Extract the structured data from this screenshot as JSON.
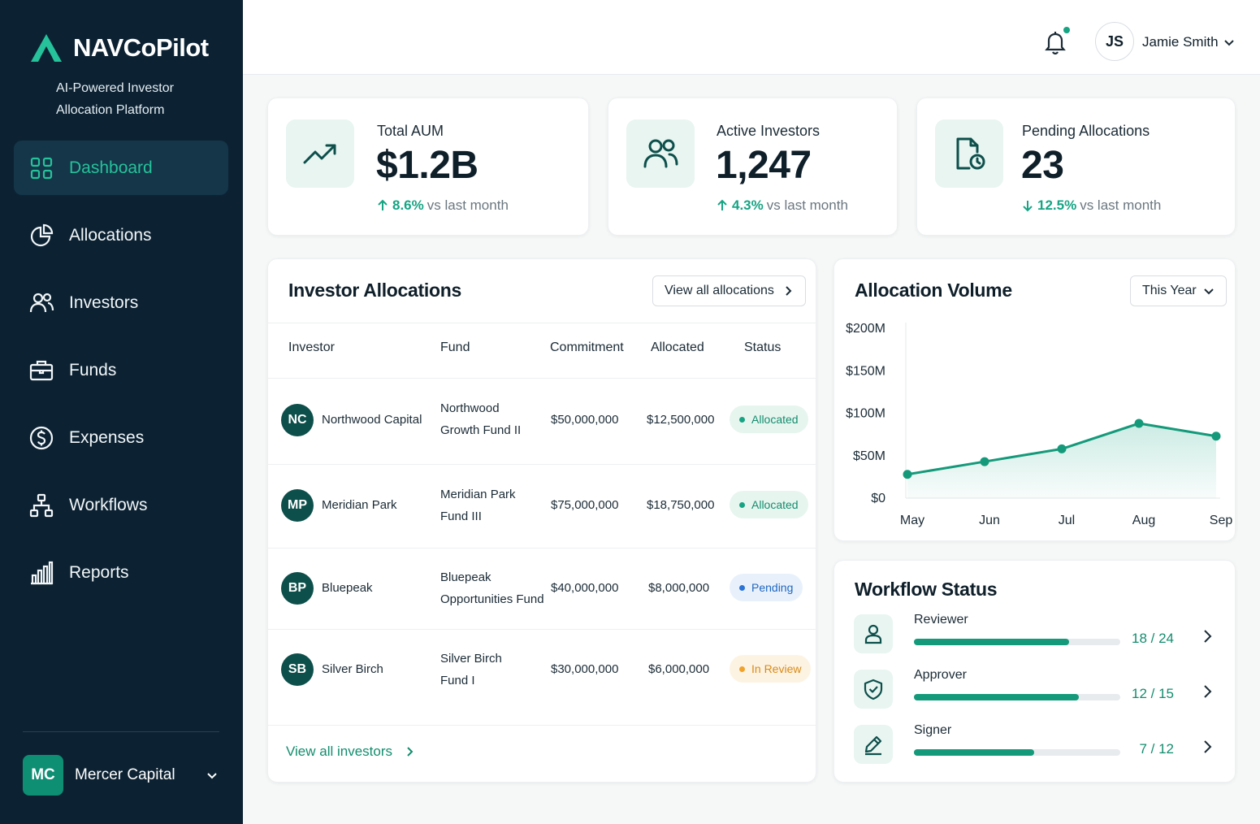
{
  "brand": {
    "name": "NAVCoPilot",
    "tagline": "AI-Powered Investor Allocation Platform"
  },
  "colors": {
    "sidebar_bg": "#0c2233",
    "accent": "#16a483",
    "accent_dark": "#0d4f4b",
    "pending_blue": "#2b73d6",
    "review_orange": "#f0a22a"
  },
  "nav": {
    "items": [
      {
        "label": "Dashboard",
        "icon": "grid-icon",
        "active": true
      },
      {
        "label": "Allocations",
        "icon": "pie-chart-icon"
      },
      {
        "label": "Investors",
        "icon": "users-icon"
      },
      {
        "label": "Funds",
        "icon": "briefcase-icon"
      },
      {
        "label": "Expenses",
        "icon": "dollar-circle-icon"
      },
      {
        "label": "Workflows",
        "icon": "hierarchy-icon"
      },
      {
        "label": "Reports",
        "icon": "bar-chart-icon"
      }
    ]
  },
  "org": {
    "initials": "MC",
    "name": "Mercer Capital"
  },
  "header": {
    "user_initials": "JS",
    "user_name": "Jamie Smith"
  },
  "stats": [
    {
      "label": "Total AUM",
      "value": "$1.2B",
      "change": "8.6%",
      "direction": "up",
      "suffix": "vs last month",
      "icon": "trending-up-icon"
    },
    {
      "label": "Active Investors",
      "value": "1,247",
      "change": "4.3%",
      "direction": "up",
      "suffix": "vs last month",
      "icon": "users-icon"
    },
    {
      "label": "Pending Allocations",
      "value": "23",
      "change": "12.5%",
      "direction": "down",
      "suffix": "vs last month",
      "icon": "file-clock-icon"
    }
  ],
  "allocations": {
    "title": "Investor Allocations",
    "view_all_label": "View all allocations",
    "columns": [
      "Investor",
      "Fund",
      "Commitment",
      "Allocated",
      "Status"
    ],
    "rows": [
      {
        "initials": "NC",
        "investor": "Northwood Capital",
        "fund_line1": "Northwood",
        "fund_line2": "Growth Fund II",
        "commitment": "$50,000,000",
        "allocated": "$12,500,000",
        "status": "Allocated",
        "status_kind": "allocated"
      },
      {
        "initials": "MP",
        "investor": "Meridian Park",
        "fund_line1": "Meridian Park",
        "fund_line2": "Fund III",
        "commitment": "$75,000,000",
        "allocated": "$18,750,000",
        "status": "Allocated",
        "status_kind": "allocated"
      },
      {
        "initials": "BP",
        "investor": "Bluepeak",
        "fund_line1": "Bluepeak",
        "fund_line2": "Opportunities Fund",
        "commitment": "$40,000,000",
        "allocated": "$8,000,000",
        "status": "Pending",
        "status_kind": "pending"
      },
      {
        "initials": "SB",
        "investor": "Silver Birch",
        "fund_line1": "Silver Birch",
        "fund_line2": "Fund I",
        "commitment": "$30,000,000",
        "allocated": "$6,000,000",
        "status": "In Review",
        "status_kind": "review"
      }
    ],
    "view_investors_label": "View all investors"
  },
  "volume": {
    "title": "Allocation Volume",
    "period": "This Year"
  },
  "chart_data": {
    "type": "area",
    "title": "Allocation Volume",
    "categories": [
      "May",
      "Jun",
      "Jul",
      "Aug",
      "Sep"
    ],
    "values": [
      28,
      43,
      58,
      88,
      73
    ],
    "unit": "$M",
    "y_ticks": [
      "$0",
      "$50M",
      "$100M",
      "$150M",
      "$200M"
    ],
    "y_tick_values": [
      0,
      50,
      100,
      150,
      200
    ],
    "ylim": [
      0,
      200
    ],
    "xlabel": "",
    "ylabel": "",
    "grid": false,
    "legend": "none"
  },
  "workflow": {
    "title": "Workflow Status",
    "items": [
      {
        "label": "Reviewer",
        "count": "18 / 24",
        "done": 18,
        "total": 24,
        "icon": "user-icon"
      },
      {
        "label": "Approver",
        "count": "12 / 15",
        "done": 12,
        "total": 15,
        "icon": "shield-check-icon"
      },
      {
        "label": "Signer",
        "count": "7 / 12",
        "done": 7,
        "total": 12,
        "icon": "pen-icon"
      }
    ]
  }
}
